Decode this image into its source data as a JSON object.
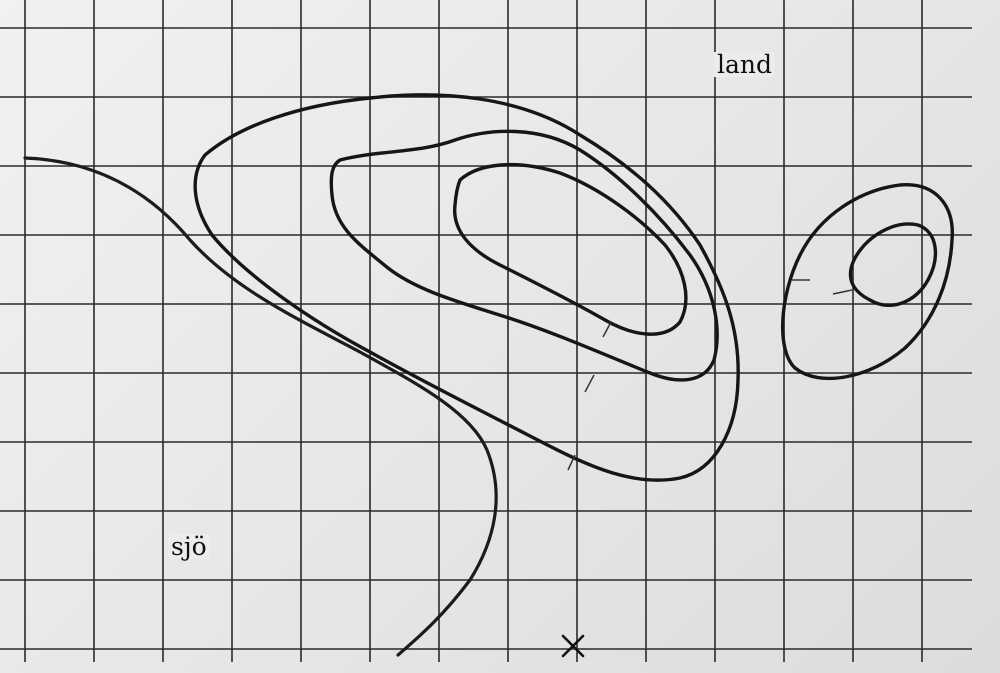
{
  "labels": {
    "land": "land",
    "sea": "sjö"
  },
  "features": {
    "contours": [
      "outer-hill-contour",
      "middle-hill-contour",
      "inner-hill-contour",
      "small-hill-outer-contour",
      "small-hill-inner-contour"
    ],
    "shoreline": "shoreline",
    "marker": "cross-marker"
  },
  "colors": {
    "paper": "#ebebeb",
    "ink": "#161616"
  }
}
